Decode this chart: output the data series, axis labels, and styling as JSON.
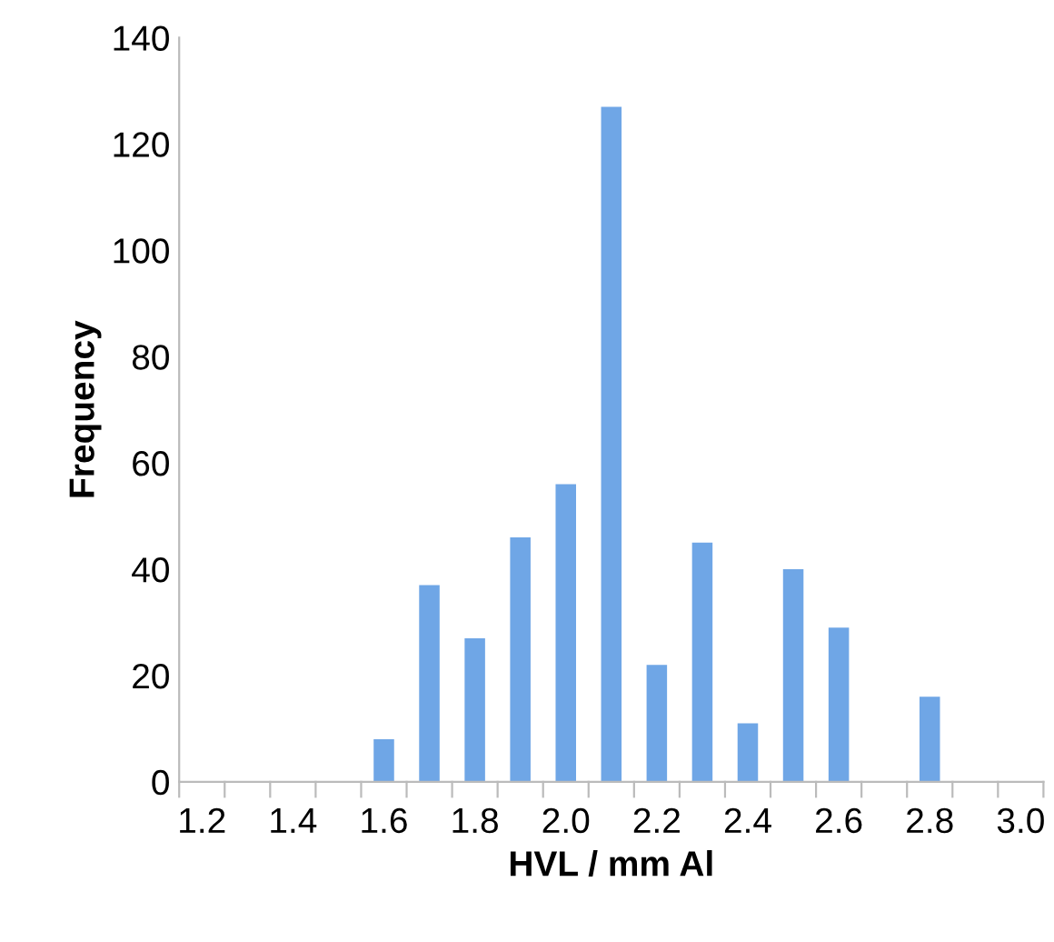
{
  "chart_data": {
    "type": "bar",
    "xlabel": "HVL / mm Al",
    "ylabel": "Frequency",
    "categories": [
      "1.2",
      null,
      "1.4",
      null,
      "1.6",
      null,
      "1.8",
      null,
      "2.0",
      null,
      "2.2",
      null,
      "2.4",
      null,
      "2.6",
      null,
      "2.8",
      null,
      "3.0"
    ],
    "series": [
      {
        "color": "#6fa6e6",
        "values": [
          0,
          0,
          0,
          0,
          8,
          37,
          27,
          46,
          56,
          127,
          22,
          45,
          11,
          40,
          29,
          0,
          16,
          0,
          0
        ]
      }
    ],
    "ylim": [
      0,
      140
    ],
    "yticks": [
      0,
      20,
      40,
      60,
      80,
      100,
      120,
      140
    ],
    "grid": false,
    "legend": false
  }
}
